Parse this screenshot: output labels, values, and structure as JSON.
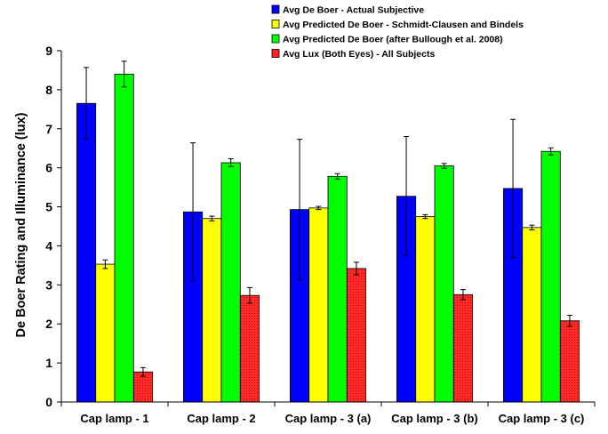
{
  "chart_data": {
    "type": "bar",
    "title": "",
    "xlabel": "",
    "ylabel": "De Boer Rating  and Illuminance (lux)",
    "ylim": [
      0,
      9
    ],
    "yticks": [
      "0",
      "1",
      "2",
      "3",
      "4",
      "5",
      "6",
      "7",
      "8",
      "9"
    ],
    "grid": false,
    "legend_position": "top-right",
    "categories": [
      "Cap lamp - 1",
      "Cap lamp - 2",
      "Cap lamp - 3 (a)",
      "Cap lamp - 3 (b)",
      "Cap lamp - 3 (c)"
    ],
    "series": [
      {
        "name": "Avg De Boer - Actual Subjective",
        "color": "#0000ff",
        "values": [
          7.65,
          4.87,
          4.93,
          5.27,
          5.47
        ],
        "error": [
          0.92,
          1.77,
          1.8,
          1.53,
          1.77
        ]
      },
      {
        "name": "Avg Predicted De Boer - Schmidt-Clausen and Bindels",
        "color": "#ffff00",
        "values": [
          3.53,
          4.7,
          4.97,
          4.75,
          4.47
        ],
        "error": [
          0.11,
          0.06,
          0.04,
          0.05,
          0.06
        ]
      },
      {
        "name": "Avg Predicted De Boer (after Bullough et al. 2008)",
        "color": "#00ff00",
        "values": [
          8.4,
          6.13,
          5.78,
          6.05,
          6.42
        ],
        "error": [
          0.33,
          0.1,
          0.07,
          0.06,
          0.09
        ]
      },
      {
        "name": "Avg Lux (Both Eyes) - All Subjects",
        "color": "#ff2020",
        "values": [
          0.77,
          2.73,
          3.42,
          2.75,
          2.08
        ],
        "error": [
          0.11,
          0.2,
          0.16,
          0.13,
          0.14
        ]
      }
    ]
  }
}
